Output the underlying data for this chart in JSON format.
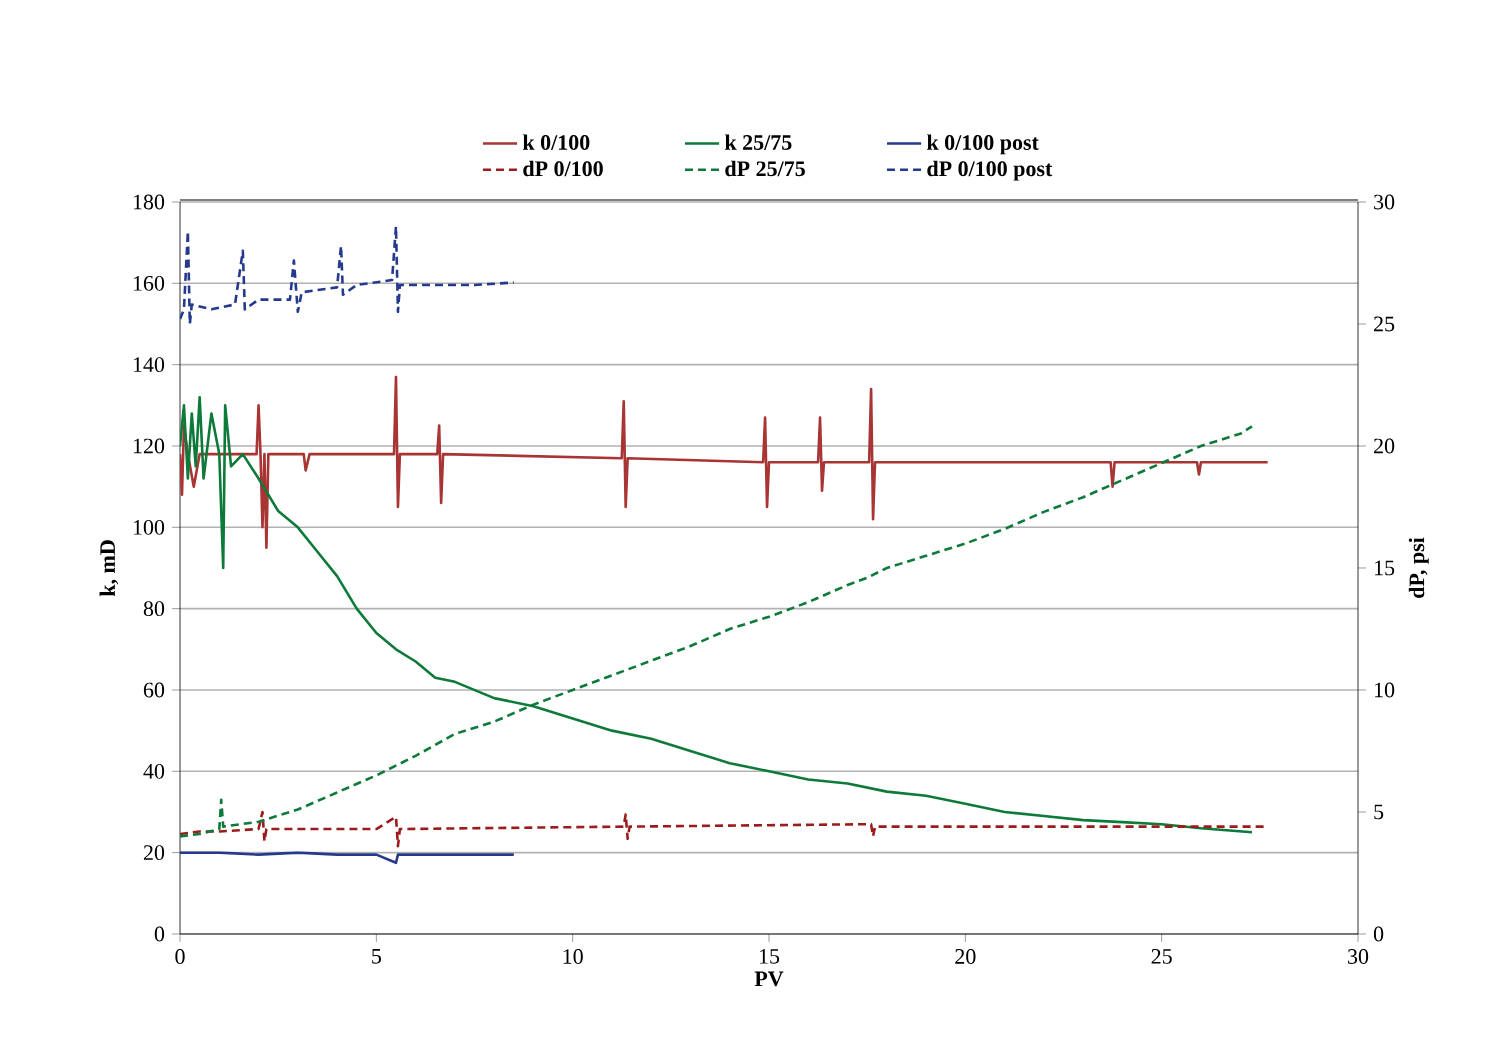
{
  "chart_data": {
    "type": "line",
    "xlabel": "PV",
    "ylabel": "k, mD",
    "y2label": "dP, psi",
    "xlim": [
      0,
      30
    ],
    "xticks": [
      0,
      5,
      10,
      15,
      20,
      25,
      30
    ],
    "ylim": [
      0,
      180
    ],
    "yticks": [
      0,
      20,
      40,
      60,
      80,
      100,
      120,
      140,
      160,
      180
    ],
    "y2lim": [
      0,
      30
    ],
    "y2ticks": [
      0,
      5,
      10,
      15,
      20,
      25,
      30
    ],
    "grid": "y",
    "legend": "top",
    "marker": "none",
    "series": [
      {
        "name": "k 0/100",
        "color": "#a83434",
        "line_style": "solid",
        "x": [
          0,
          0.05,
          0.1,
          0.2,
          0.35,
          0.5,
          1.95,
          2.0,
          2.05,
          2.1,
          2.15,
          2.2,
          2.25,
          3.15,
          3.2,
          3.3,
          5.45,
          5.5,
          5.55,
          5.6,
          6.55,
          6.6,
          6.65,
          6.7,
          11.25,
          11.3,
          11.35,
          11.4,
          14.85,
          14.9,
          14.95,
          15.0,
          16.25,
          16.3,
          16.35,
          16.4,
          17.55,
          17.6,
          17.65,
          17.7,
          23.7,
          23.75,
          23.8,
          25.9,
          25.95,
          26,
          27.7
        ],
        "values": [
          118,
          108,
          125,
          118,
          110,
          118,
          118,
          130,
          118,
          100,
          118,
          95,
          118,
          118,
          114,
          118,
          118,
          137,
          105,
          118,
          118,
          125,
          106,
          118,
          117,
          131,
          105,
          117,
          116,
          127,
          105,
          116,
          116,
          127,
          109,
          116,
          116,
          134,
          102,
          116,
          116,
          110,
          116,
          116,
          113,
          116,
          116
        ]
      },
      {
        "name": "k 25/75",
        "color": "#0e7a3a",
        "line_style": "solid",
        "x": [
          0,
          0.1,
          0.2,
          0.3,
          0.4,
          0.5,
          0.6,
          0.8,
          1.0,
          1.1,
          1.15,
          1.3,
          1.6,
          2,
          2.5,
          3,
          3.5,
          4,
          4.5,
          5,
          5.5,
          6,
          6.5,
          7,
          8,
          9,
          10,
          11,
          12,
          13,
          14,
          15,
          16,
          17,
          18,
          19,
          20,
          21,
          22,
          23,
          24,
          25,
          26,
          27.3
        ],
        "values": [
          120,
          130,
          112,
          128,
          115,
          132,
          112,
          128,
          118,
          90,
          130,
          115,
          118,
          112,
          104,
          100,
          94,
          88,
          80,
          74,
          70,
          67,
          63,
          62,
          58,
          56,
          53,
          50,
          48,
          45,
          42,
          40,
          38,
          37,
          35,
          34,
          32,
          30,
          29,
          28,
          27.5,
          27,
          26,
          25
        ]
      },
      {
        "name": "k 0/100 post",
        "color": "#253a8c",
        "line_style": "solid",
        "x": [
          0,
          0.5,
          1,
          2,
          3,
          4,
          5,
          5.5,
          5.55,
          7,
          8.5
        ],
        "values": [
          20,
          20,
          20,
          19.5,
          20,
          19.5,
          19.5,
          17.5,
          19.5,
          19.5,
          19.5
        ]
      },
      {
        "name": "dP 0/100",
        "color": "#9b1c1c",
        "line_style": "dashed",
        "axis": "y2",
        "x": [
          0,
          0.5,
          1,
          2,
          2.1,
          2.15,
          2.2,
          5,
          5.5,
          5.55,
          5.6,
          11.3,
          11.35,
          11.4,
          11.45,
          17.6,
          17.65,
          17.7,
          27.7
        ],
        "values": [
          4.1,
          4.2,
          4.2,
          4.3,
          5.0,
          3.8,
          4.3,
          4.3,
          4.8,
          3.6,
          4.3,
          4.4,
          4.9,
          3.9,
          4.4,
          4.5,
          4.0,
          4.4,
          4.4
        ]
      },
      {
        "name": "dP 25/75",
        "color": "#0e7a3a",
        "line_style": "dashed",
        "axis": "y2",
        "x": [
          0,
          0.5,
          1,
          1.05,
          1.1,
          2,
          3,
          4,
          5,
          6,
          7,
          8,
          9,
          10,
          11,
          12,
          13,
          14,
          15,
          16,
          17,
          17.5,
          18,
          19,
          20,
          21,
          22,
          23,
          24,
          25,
          26,
          27,
          27.3
        ],
        "values": [
          4.0,
          4.1,
          4.3,
          5.5,
          4.4,
          4.6,
          5.1,
          5.8,
          6.5,
          7.3,
          8.2,
          8.7,
          9.4,
          10.0,
          10.6,
          11.2,
          11.8,
          12.5,
          13.0,
          13.6,
          14.3,
          14.6,
          15.0,
          15.5,
          16.0,
          16.6,
          17.3,
          17.9,
          18.6,
          19.3,
          20.0,
          20.5,
          20.8
        ]
      },
      {
        "name": "dP 0/100 post",
        "color": "#253a8c",
        "line_style": "dashed",
        "axis": "y2",
        "x": [
          0,
          0.1,
          0.2,
          0.25,
          0.3,
          0.8,
          1.4,
          1.6,
          1.65,
          2,
          2.8,
          2.9,
          3.0,
          3.1,
          4.0,
          4.1,
          4.15,
          4.5,
          5.4,
          5.5,
          5.55,
          5.6,
          6.5,
          7.5,
          8.5
        ],
        "values": [
          25.2,
          25.6,
          28.8,
          25.0,
          25.8,
          25.6,
          25.8,
          28.0,
          25.6,
          26.0,
          26.0,
          27.6,
          25.5,
          26.3,
          26.5,
          28.2,
          26.2,
          26.6,
          26.8,
          29.0,
          25.5,
          26.6,
          26.6,
          26.6,
          26.7
        ]
      }
    ]
  }
}
